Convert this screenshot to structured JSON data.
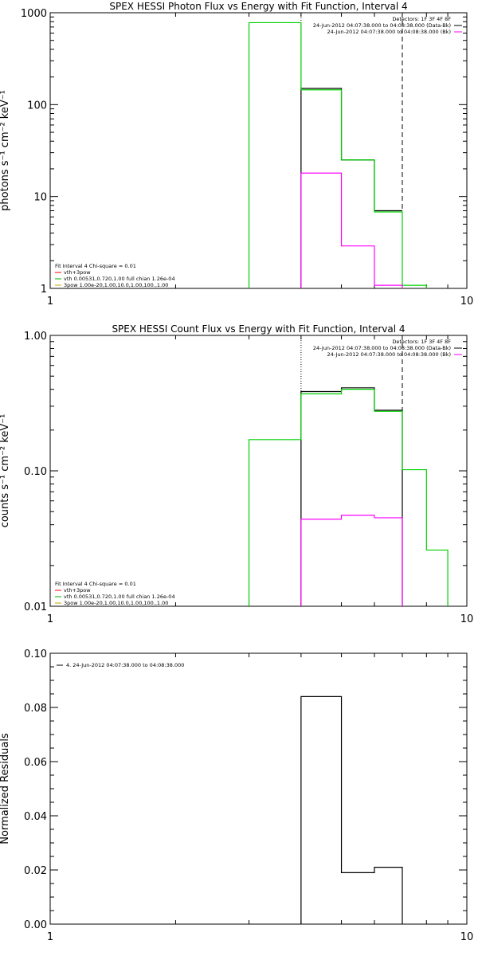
{
  "colors": {
    "axis": "#000000",
    "data": "#000000",
    "model": "#00d000",
    "background": "#ff00ff",
    "vth": "#00b000",
    "dashed": "#000000",
    "legend_red": "#ff0000",
    "legend_green": "#00b000",
    "legend_yellow": "#c8a000"
  },
  "chart_data": [
    {
      "type": "line",
      "title": "SPEX HESSI Photon Flux vs Energy with Fit Function, Interval 4",
      "xlabel": "",
      "ylabel": "photons s⁻¹ cm⁻² keV⁻¹",
      "xscale": "log",
      "yscale": "log",
      "xlim": [
        1,
        10
      ],
      "ylim": [
        1,
        1000
      ],
      "xticks": [
        {
          "v": 1,
          "label": "1"
        },
        {
          "v": 10,
          "label": "10"
        }
      ],
      "yticks": [
        {
          "v": 1,
          "label": "1"
        },
        {
          "v": 10,
          "label": "10"
        },
        {
          "v": 100,
          "label": "100"
        },
        {
          "v": 1000,
          "label": "1000"
        }
      ],
      "vlines": [
        {
          "x": 4.0,
          "style": "dotted"
        },
        {
          "x": 7.0,
          "style": "dashed"
        }
      ],
      "legend_top": [
        "Detectors: 1F 3F 4F 8F",
        "24-Jun-2012 04:07:38.000 to 04:08:38.000 (Data-Bk)",
        "24-Jun-2012 04:07:38.000 to 04:08:38.000 (Bk)"
      ],
      "legend_bottom": [
        "Fit Interval  4    Chi-square = 0.01",
        "vth+3pow",
        "vth 0.00531,0.720,1.00   full chian 1.26e-04",
        "3pow 1.00e-20,1.00,10.0,1.00,100.,1.00"
      ],
      "series": [
        {
          "kind": "data",
          "edges": [
            4,
            5,
            6,
            7
          ],
          "values": [
            150,
            25,
            7
          ]
        },
        {
          "kind": "model",
          "edges": [
            3,
            4,
            5,
            6,
            7,
            8
          ],
          "values": [
            780,
            145,
            25,
            6.8,
            1.08
          ]
        },
        {
          "kind": "background",
          "edges": [
            4,
            5,
            6,
            7
          ],
          "values": [
            18,
            2.9,
            1.08
          ]
        }
      ]
    },
    {
      "type": "line",
      "title": "SPEX HESSI Count Flux vs Energy with Fit Function, Interval 4",
      "xlabel": "",
      "ylabel": "counts s⁻¹ cm⁻² keV⁻¹",
      "xscale": "log",
      "yscale": "log",
      "xlim": [
        1,
        10
      ],
      "ylim": [
        0.01,
        1.0
      ],
      "xticks": [
        {
          "v": 1,
          "label": "1"
        },
        {
          "v": 10,
          "label": "10"
        }
      ],
      "yticks": [
        {
          "v": 0.01,
          "label": "0.01"
        },
        {
          "v": 0.1,
          "label": "0.10"
        },
        {
          "v": 1.0,
          "label": "1.00"
        }
      ],
      "vlines": [
        {
          "x": 4.0,
          "style": "dotted"
        },
        {
          "x": 7.0,
          "style": "dashed"
        }
      ],
      "legend_top": [
        "Detectors: 1F 3F 4F 8F",
        "24-Jun-2012 04:07:38.000 to 04:08:38.000 (Data-Bk)",
        "24-Jun-2012 04:07:38.000 to 04:08:38.000 (Bk)"
      ],
      "legend_bottom": [
        "Fit Interval  4    Chi-square = 0.01",
        "vth+3pow",
        "vth 0.00531,0.720,1.00   full chian 1.26e-04",
        "3pow 1.00e-20,1.00,10.0,1.00,100.,1.00"
      ],
      "series": [
        {
          "kind": "data",
          "edges": [
            4,
            5,
            6,
            7
          ],
          "values": [
            0.385,
            0.41,
            0.28
          ]
        },
        {
          "kind": "model",
          "edges": [
            3,
            4,
            5,
            6,
            7,
            8,
            9
          ],
          "values": [
            0.17,
            0.37,
            0.4,
            0.275,
            0.102,
            0.026
          ]
        },
        {
          "kind": "background",
          "edges": [
            4,
            5,
            6,
            7
          ],
          "values": [
            0.044,
            0.047,
            0.045
          ]
        }
      ]
    },
    {
      "type": "line",
      "title": "",
      "xlabel": "",
      "ylabel": "Normalized Residuals",
      "xscale": "log",
      "yscale": "linear",
      "xlim": [
        1,
        10
      ],
      "ylim": [
        0.0,
        0.1
      ],
      "xticks": [
        {
          "v": 1,
          "label": "1"
        },
        {
          "v": 10,
          "label": "10"
        }
      ],
      "yticks": [
        {
          "v": 0.0,
          "label": "0.00"
        },
        {
          "v": 0.02,
          "label": "0.02"
        },
        {
          "v": 0.04,
          "label": "0.04"
        },
        {
          "v": 0.06,
          "label": "0.06"
        },
        {
          "v": 0.08,
          "label": "0.08"
        },
        {
          "v": 0.1,
          "label": "0.10"
        }
      ],
      "legend": [
        "4. 24-Jun-2012 04:07:38.000 to 04:08:38.000"
      ],
      "series": [
        {
          "kind": "residual",
          "edges": [
            4,
            5,
            6,
            7
          ],
          "values": [
            0.084,
            0.019,
            0.021
          ]
        }
      ]
    }
  ]
}
